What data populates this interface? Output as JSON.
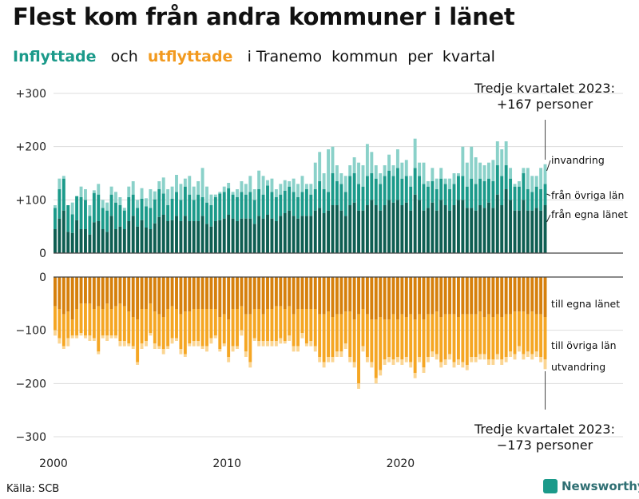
{
  "title": "Flest kom från andra kommuner i länet",
  "subtitle": {
    "in_label": "Inflyttade",
    "and": "och",
    "out_label": "utflyttade",
    "rest": "i Tranemo  kommun  per  kvartal"
  },
  "source": "Källa: SCB",
  "logo": {
    "icon": "newsworthy-logo-icon",
    "text": "Newsworthy"
  },
  "colors": {
    "in_same": "#0e5e52",
    "in_other": "#1b9a8a",
    "in_immig": "#8ad1c9",
    "out_same": "#d6800c",
    "out_other": "#f5a623",
    "out_emig": "#fbd592",
    "grid": "#dddddd",
    "axis": "#444444"
  },
  "chart_data": {
    "type": "bar",
    "stacked": true,
    "x_start": 2000,
    "x_step": 0.25,
    "xlim": [
      2000,
      2023.75
    ],
    "x_ticks": [
      "2000",
      "2010",
      "2020"
    ],
    "top_panel": {
      "ylim": [
        0,
        300
      ],
      "y_ticks": [
        "0",
        "+100",
        "+200",
        "+300"
      ],
      "series": [
        {
          "name": "från egna länet",
          "values": [
            45,
            65,
            80,
            40,
            38,
            62,
            45,
            45,
            35,
            58,
            60,
            45,
            40,
            70,
            45,
            50,
            45,
            60,
            70,
            50,
            62,
            48,
            45,
            56,
            68,
            72,
            60,
            62,
            70,
            60,
            70,
            60,
            60,
            60,
            70,
            55,
            50,
            60,
            62,
            65,
            72,
            65,
            60,
            65,
            65,
            65,
            55,
            70,
            65,
            72,
            65,
            60,
            70,
            75,
            80,
            70,
            65,
            70,
            70,
            70,
            80,
            85,
            75,
            80,
            90,
            90,
            80,
            70,
            90,
            95,
            80,
            80,
            90,
            100,
            90,
            80,
            90,
            100,
            95,
            100,
            90,
            95,
            80,
            110,
            100,
            80,
            85,
            95,
            80,
            100,
            90,
            80,
            90,
            100,
            100,
            85,
            85,
            80,
            90,
            85,
            95,
            85,
            110,
            90,
            120,
            100,
            80,
            80,
            100,
            80,
            80,
            85,
            80,
            90
          ]
        },
        {
          "name": "från övriga län",
          "values": [
            40,
            55,
            60,
            50,
            35,
            45,
            60,
            55,
            35,
            55,
            50,
            40,
            40,
            40,
            50,
            40,
            35,
            45,
            40,
            35,
            40,
            40,
            40,
            45,
            52,
            40,
            30,
            40,
            45,
            40,
            55,
            50,
            40,
            50,
            35,
            40,
            40,
            45,
            50,
            50,
            50,
            45,
            45,
            50,
            45,
            50,
            45,
            50,
            45,
            55,
            50,
            45,
            40,
            42,
            45,
            45,
            40,
            45,
            50,
            40,
            40,
            50,
            45,
            35,
            60,
            45,
            50,
            45,
            55,
            55,
            50,
            45,
            55,
            50,
            50,
            50,
            55,
            55,
            50,
            60,
            50,
            50,
            45,
            50,
            45,
            50,
            40,
            40,
            40,
            40,
            40,
            40,
            40,
            45,
            45,
            40,
            55,
            50,
            50,
            50,
            45,
            50,
            55,
            55,
            45,
            40,
            45,
            45,
            50,
            40,
            35,
            40,
            40,
            40
          ]
        },
        {
          "name": "invandring",
          "values": [
            5,
            20,
            5,
            0,
            22,
            0,
            20,
            20,
            20,
            5,
            20,
            15,
            15,
            15,
            20,
            15,
            5,
            20,
            25,
            15,
            20,
            15,
            35,
            15,
            15,
            30,
            30,
            23,
            32,
            30,
            15,
            35,
            25,
            25,
            55,
            30,
            20,
            5,
            3,
            10,
            10,
            5,
            15,
            20,
            20,
            30,
            20,
            35,
            35,
            10,
            25,
            15,
            20,
            20,
            10,
            25,
            25,
            30,
            10,
            20,
            50,
            55,
            30,
            80,
            50,
            30,
            20,
            30,
            20,
            30,
            40,
            40,
            60,
            40,
            25,
            20,
            20,
            30,
            20,
            35,
            30,
            30,
            20,
            55,
            25,
            40,
            10,
            25,
            20,
            20,
            10,
            20,
            20,
            5,
            55,
            45,
            60,
            50,
            30,
            30,
            30,
            40,
            45,
            50,
            45,
            20,
            5,
            10,
            10,
            40,
            30,
            20,
            40,
            37
          ]
        }
      ]
    },
    "bottom_panel": {
      "ylim": [
        -300,
        0
      ],
      "y_ticks": [
        "0",
        "−100",
        "−200",
        "−300"
      ],
      "series": [
        {
          "name": "till egna länet",
          "values": [
            55,
            60,
            70,
            65,
            80,
            60,
            50,
            50,
            50,
            60,
            55,
            60,
            50,
            60,
            55,
            50,
            55,
            65,
            75,
            80,
            60,
            60,
            50,
            65,
            70,
            75,
            60,
            55,
            60,
            70,
            65,
            65,
            60,
            60,
            60,
            60,
            60,
            60,
            75,
            70,
            80,
            60,
            60,
            55,
            70,
            70,
            60,
            60,
            70,
            60,
            60,
            55,
            55,
            60,
            55,
            70,
            60,
            60,
            60,
            60,
            60,
            70,
            70,
            65,
            75,
            70,
            70,
            65,
            65,
            80,
            70,
            60,
            70,
            80,
            80,
            75,
            80,
            80,
            70,
            80,
            70,
            75,
            70,
            80,
            70,
            80,
            70,
            70,
            65,
            75,
            70,
            70,
            70,
            75,
            70,
            70,
            70,
            70,
            65,
            75,
            70,
            75,
            70,
            75,
            70,
            70,
            65,
            65,
            65,
            70,
            65,
            70,
            70,
            75
          ]
        },
        {
          "name": "till övriga län",
          "values": [
            45,
            55,
            60,
            50,
            30,
            50,
            55,
            60,
            60,
            55,
            85,
            50,
            60,
            50,
            55,
            70,
            65,
            60,
            55,
            80,
            65,
            60,
            55,
            60,
            60,
            60,
            70,
            60,
            55,
            65,
            80,
            60,
            60,
            60,
            70,
            70,
            55,
            50,
            60,
            55,
            70,
            70,
            70,
            45,
            70,
            90,
            55,
            60,
            50,
            60,
            60,
            65,
            60,
            60,
            55,
            60,
            70,
            45,
            65,
            60,
            70,
            80,
            90,
            85,
            75,
            70,
            70,
            60,
            85,
            80,
            130,
            70,
            80,
            80,
            110,
            100,
            75,
            70,
            85,
            70,
            85,
            75,
            90,
            100,
            80,
            90,
            80,
            70,
            80,
            85,
            85,
            75,
            90,
            80,
            90,
            95,
            80,
            80,
            80,
            70,
            85,
            80,
            75,
            80,
            80,
            70,
            80,
            65,
            80,
            70,
            80,
            70,
            80,
            80
          ]
        },
        {
          "name": "utvandring",
          "values": [
            10,
            10,
            5,
            15,
            5,
            5,
            5,
            5,
            10,
            5,
            5,
            5,
            10,
            5,
            5,
            10,
            10,
            5,
            5,
            5,
            10,
            10,
            5,
            10,
            5,
            10,
            5,
            10,
            5,
            10,
            5,
            5,
            10,
            10,
            5,
            10,
            10,
            5,
            5,
            5,
            10,
            10,
            5,
            10,
            10,
            10,
            5,
            10,
            10,
            10,
            10,
            10,
            10,
            5,
            10,
            10,
            10,
            10,
            5,
            10,
            10,
            10,
            10,
            10,
            10,
            10,
            10,
            10,
            10,
            10,
            10,
            10,
            10,
            10,
            10,
            10,
            10,
            10,
            10,
            10,
            10,
            10,
            10,
            10,
            10,
            10,
            10,
            10,
            10,
            10,
            10,
            10,
            10,
            10,
            10,
            10,
            10,
            10,
            10,
            10,
            10,
            10,
            10,
            10,
            10,
            10,
            10,
            10,
            10,
            10,
            10,
            10,
            10,
            18
          ]
        }
      ]
    },
    "series_labels": {
      "top": [
        "invandring",
        "från övriga län",
        "från egna länet"
      ],
      "bottom": [
        "till egna länet",
        "till övriga län",
        "utvandring"
      ]
    },
    "annotations": {
      "top_line1": "Tredje kvartalet 2023:",
      "top_line2": "+167 personer",
      "bottom_line1": "Tredje kvartalet 2023:",
      "bottom_line2": "−173 personer"
    }
  }
}
